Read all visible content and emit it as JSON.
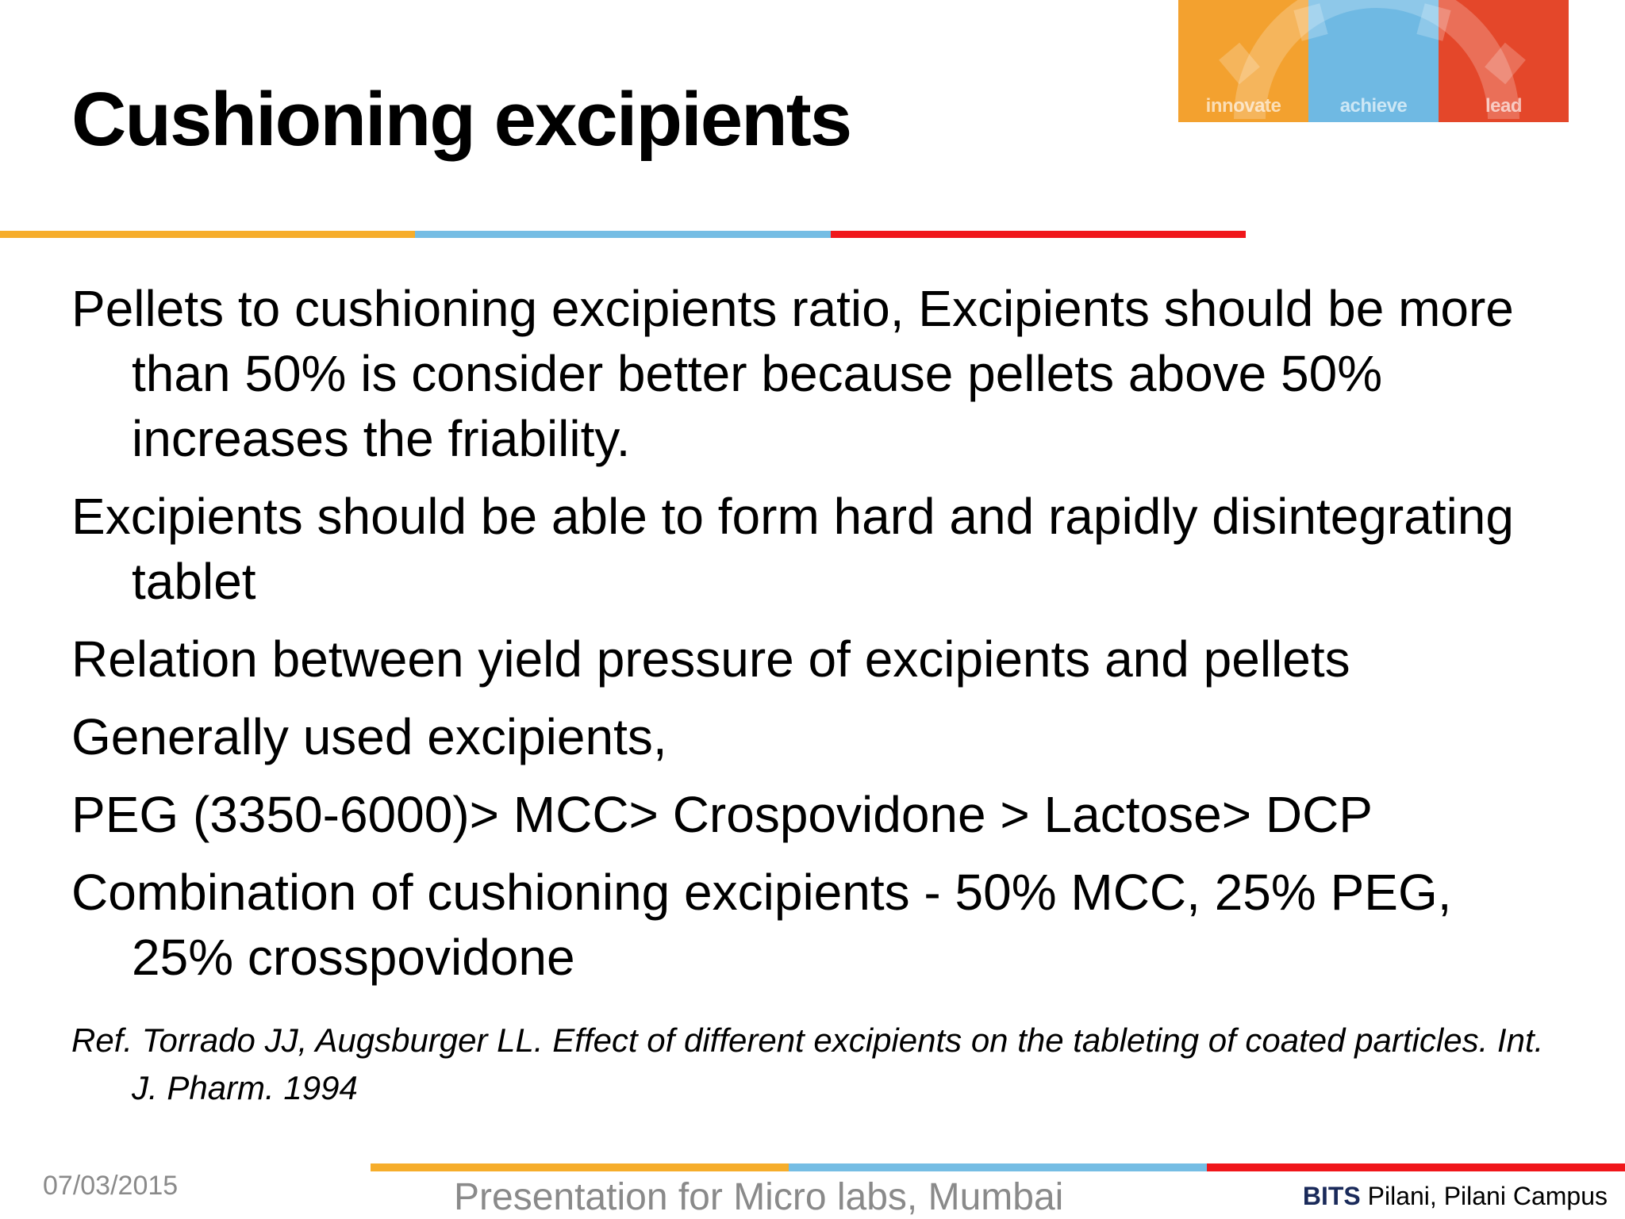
{
  "logo": {
    "words": [
      "innovate",
      "achieve",
      "lead"
    ],
    "colors": [
      "#f3a12f",
      "#6fb9e3",
      "#e4472a"
    ]
  },
  "title": "Cushioning excipients",
  "bullets": [
    "Pellets to cushioning excipients ratio, Excipients should be more than 50% is consider better because pellets above 50% increases the friability.",
    "Excipients should be able to form hard and rapidly disintegrating tablet",
    "Relation between yield pressure of excipients and pellets",
    "Generally used excipients,",
    "PEG (3350-6000)> MCC> Crospovidone > Lactose> DCP",
    "Combination of cushioning excipients - 50% MCC, 25% PEG, 25% crosspovidone"
  ],
  "reference": {
    "lead": "Ref.",
    "text": " Torrado JJ, Augsburger LL. Effect of different excipients on the tableting of coated particles. Int. J. Pharm. 1994"
  },
  "footer": {
    "date": "07/03/2015",
    "center": "Presentation for Micro labs, Mumbai",
    "brand_bold": "BITS",
    "brand_rest": " Pilani, Pilani Campus"
  },
  "accent_colors": {
    "orange": "#f6ad2b",
    "blue": "#75bde4",
    "red": "#f0161a"
  }
}
